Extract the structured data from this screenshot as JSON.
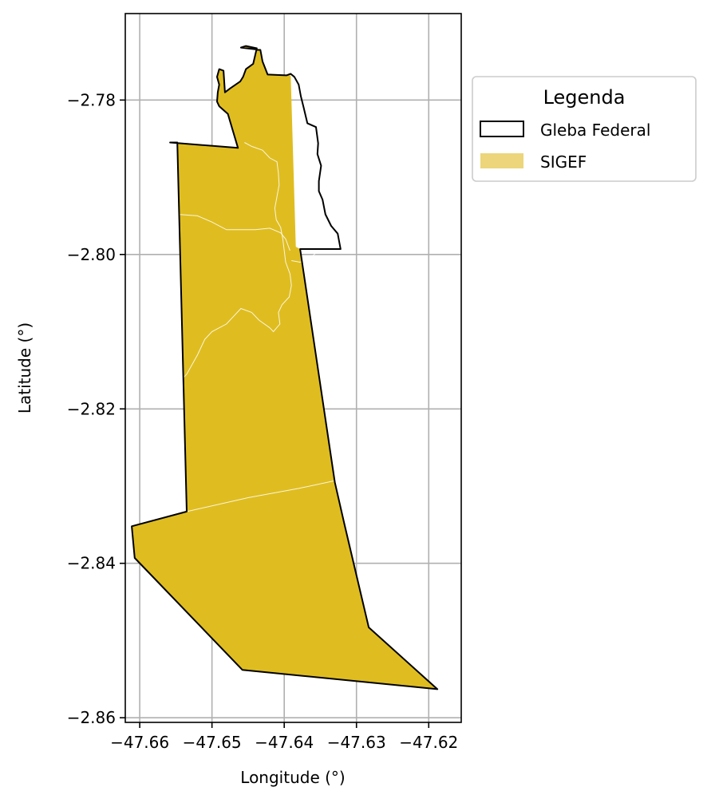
{
  "chart_data": {
    "type": "map",
    "xlabel": "Longitude (°)",
    "ylabel": "Latitude (°)",
    "xlim": [
      -47.662,
      -47.6155
    ],
    "ylim": [
      -2.8606,
      -2.7688
    ],
    "xticks": [
      -47.66,
      -47.65,
      -47.64,
      -47.63,
      -47.62
    ],
    "xtick_labels": [
      "−47.66",
      "−47.65",
      "−47.64",
      "−47.63",
      "−47.62"
    ],
    "yticks": [
      -2.78,
      -2.8,
      -2.82,
      -2.84,
      -2.86
    ],
    "ytick_labels": [
      "−2.78",
      "−2.80",
      "−2.82",
      "−2.84",
      "−2.86"
    ],
    "grid": true,
    "legend": {
      "title": "Legenda",
      "placement": "outside-right",
      "entries": [
        {
          "label": "Gleba Federal",
          "style": "outline",
          "edge": "#000000",
          "face": "none"
        },
        {
          "label": "SIGEF",
          "style": "fill",
          "face": "#ecd57a"
        }
      ]
    },
    "colors": {
      "sigef_fill": "#dfbd20",
      "outline": "#000000",
      "grid": "#b0b0b0",
      "parcel_lines": "#ffffff"
    },
    "gleba_federal": [
      [
        -47.6558,
        -2.7855
      ],
      [
        -47.6464,
        -2.7862
      ],
      [
        -47.6478,
        -2.7818
      ],
      [
        -47.649,
        -2.7808
      ],
      [
        -47.6493,
        -2.7802
      ],
      [
        -47.6492,
        -2.779
      ],
      [
        -47.649,
        -2.778
      ],
      [
        -47.6493,
        -2.777
      ],
      [
        -47.649,
        -2.776
      ],
      [
        -47.6484,
        -2.7762
      ],
      [
        -47.6482,
        -2.779
      ],
      [
        -47.6475,
        -2.7785
      ],
      [
        -47.6461,
        -2.7776
      ],
      [
        -47.6457,
        -2.777
      ],
      [
        -47.6453,
        -2.776
      ],
      [
        -47.6443,
        -2.7753
      ],
      [
        -47.6438,
        -2.7733
      ],
      [
        -47.6453,
        -2.773
      ],
      [
        -47.646,
        -2.7732
      ],
      [
        -47.6433,
        -2.7735
      ],
      [
        -47.643,
        -2.775
      ],
      [
        -47.6423,
        -2.7767
      ],
      [
        -47.6397,
        -2.7768
      ],
      [
        -47.6391,
        -2.7766
      ],
      [
        -47.6386,
        -2.777
      ],
      [
        -47.638,
        -2.778
      ],
      [
        -47.6377,
        -2.7795
      ],
      [
        -47.6373,
        -2.781
      ],
      [
        -47.6368,
        -2.783
      ],
      [
        -47.6356,
        -2.7835
      ],
      [
        -47.6353,
        -2.7856
      ],
      [
        -47.6354,
        -2.787
      ],
      [
        -47.6349,
        -2.7885
      ],
      [
        -47.6352,
        -2.7905
      ],
      [
        -47.6352,
        -2.7918
      ],
      [
        -47.6347,
        -2.7929
      ],
      [
        -47.6343,
        -2.7948
      ],
      [
        -47.6335,
        -2.7963
      ],
      [
        -47.6326,
        -2.7973
      ],
      [
        -47.6322,
        -2.7993
      ],
      [
        -47.6378,
        -2.7993
      ],
      [
        -47.633,
        -2.8295
      ],
      [
        -47.6317,
        -2.8348
      ],
      [
        -47.6283,
        -2.8483
      ],
      [
        -47.6188,
        -2.8563
      ],
      [
        -47.6458,
        -2.8538
      ],
      [
        -47.6607,
        -2.8393
      ],
      [
        -47.6611,
        -2.8352
      ],
      [
        -47.6535,
        -2.8333
      ],
      [
        -47.6548,
        -2.7855
      ]
    ],
    "sigef_extent": [
      [
        -47.6558,
        -2.7855
      ],
      [
        -47.6464,
        -2.7862
      ],
      [
        -47.6478,
        -2.7818
      ],
      [
        -47.649,
        -2.7808
      ],
      [
        -47.6493,
        -2.7802
      ],
      [
        -47.6492,
        -2.779
      ],
      [
        -47.649,
        -2.778
      ],
      [
        -47.6493,
        -2.777
      ],
      [
        -47.649,
        -2.776
      ],
      [
        -47.6484,
        -2.7762
      ],
      [
        -47.6482,
        -2.779
      ],
      [
        -47.6475,
        -2.7785
      ],
      [
        -47.6461,
        -2.7776
      ],
      [
        -47.6457,
        -2.777
      ],
      [
        -47.6453,
        -2.776
      ],
      [
        -47.6443,
        -2.7753
      ],
      [
        -47.6438,
        -2.7733
      ],
      [
        -47.6453,
        -2.773
      ],
      [
        -47.646,
        -2.7732
      ],
      [
        -47.6433,
        -2.7735
      ],
      [
        -47.643,
        -2.775
      ],
      [
        -47.6423,
        -2.7767
      ],
      [
        -47.6391,
        -2.7768
      ],
      [
        -47.6384,
        -2.799
      ],
      [
        -47.6378,
        -2.7993
      ],
      [
        -47.633,
        -2.8295
      ],
      [
        -47.6317,
        -2.8348
      ],
      [
        -47.6283,
        -2.8483
      ],
      [
        -47.6188,
        -2.8563
      ],
      [
        -47.6458,
        -2.8538
      ],
      [
        -47.6607,
        -2.8393
      ],
      [
        -47.6611,
        -2.8352
      ],
      [
        -47.6535,
        -2.8333
      ],
      [
        -47.6548,
        -2.7855
      ]
    ],
    "sigef_parcel_boundaries": [
      [
        [
          -47.6548,
          -2.7948
        ],
        [
          -47.652,
          -2.795
        ],
        [
          -47.65,
          -2.7958
        ],
        [
          -47.648,
          -2.7968
        ],
        [
          -47.646,
          -2.7968
        ],
        [
          -47.644,
          -2.7968
        ],
        [
          -47.642,
          -2.7966
        ],
        [
          -47.6405,
          -2.7972
        ],
        [
          -47.6398,
          -2.798
        ],
        [
          -47.6392,
          -2.7995
        ]
      ],
      [
        [
          -47.6455,
          -2.7855
        ],
        [
          -47.6445,
          -2.786
        ],
        [
          -47.643,
          -2.7865
        ],
        [
          -47.642,
          -2.7875
        ],
        [
          -47.641,
          -2.788
        ],
        [
          -47.6408,
          -2.7895
        ],
        [
          -47.6407,
          -2.791
        ],
        [
          -47.641,
          -2.7925
        ],
        [
          -47.6413,
          -2.794
        ],
        [
          -47.6411,
          -2.7955
        ],
        [
          -47.6405,
          -2.7965
        ]
      ],
      [
        [
          -47.6405,
          -2.7965
        ],
        [
          -47.6402,
          -2.798
        ],
        [
          -47.64,
          -2.7995
        ],
        [
          -47.6398,
          -2.801
        ],
        [
          -47.6392,
          -2.8025
        ],
        [
          -47.639,
          -2.804
        ],
        [
          -47.6393,
          -2.8055
        ],
        [
          -47.6403,
          -2.8065
        ],
        [
          -47.6408,
          -2.8075
        ],
        [
          -47.6406,
          -2.809
        ],
        [
          -47.6415,
          -2.81
        ],
        [
          -47.642,
          -2.8095
        ]
      ],
      [
        [
          -47.642,
          -2.8095
        ],
        [
          -47.6435,
          -2.8085
        ],
        [
          -47.6445,
          -2.8075
        ],
        [
          -47.646,
          -2.807
        ],
        [
          -47.647,
          -2.808
        ],
        [
          -47.648,
          -2.809
        ],
        [
          -47.649,
          -2.8095
        ],
        [
          -47.65,
          -2.81
        ],
        [
          -47.651,
          -2.811
        ],
        [
          -47.652,
          -2.813
        ],
        [
          -47.6535,
          -2.8155
        ],
        [
          -47.6545,
          -2.8165
        ]
      ],
      [
        [
          -47.639,
          -2.8008
        ],
        [
          -47.6378,
          -2.801
        ],
        [
          -47.6365,
          -2.8005
        ],
        [
          -47.6356,
          -2.7998
        ]
      ],
      [
        [
          -47.6535,
          -2.8333
        ],
        [
          -47.645,
          -2.8315
        ],
        [
          -47.638,
          -2.8303
        ],
        [
          -47.633,
          -2.8293
        ]
      ]
    ]
  }
}
